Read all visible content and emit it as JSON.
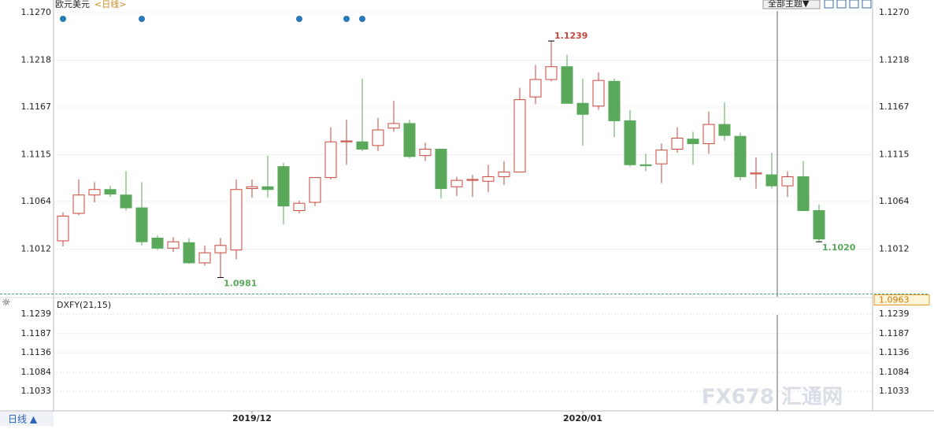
{
  "header": {
    "symbol": "欧元美元",
    "period": "<日线>",
    "theme_button": "全部主题▼",
    "footer_period": "日线 ▲",
    "watermark": "FX678 汇通网"
  },
  "chart_data": [
    {
      "type": "candlestick",
      "categories": [
        null,
        null,
        null,
        null,
        null,
        null,
        null,
        null,
        null,
        null,
        null,
        null,
        "2019/12",
        null,
        null,
        null,
        null,
        null,
        null,
        null,
        null,
        null,
        null,
        null,
        null,
        null,
        null,
        null,
        null,
        null,
        null,
        null,
        null,
        "2020/01",
        null,
        null,
        null,
        null,
        null,
        null,
        null,
        null,
        null,
        null,
        null,
        null,
        null,
        null,
        null
      ],
      "open": [
        1.1021,
        1.1051,
        1.1071,
        1.1077,
        1.1071,
        1.1057,
        1.1024,
        1.1013,
        1.1019,
        1.0997,
        1.1008,
        1.1011,
        1.1078,
        1.108,
        1.1102,
        1.1054,
        1.1063,
        1.109,
        1.1129,
        1.1129,
        1.1125,
        1.1144,
        1.1149,
        1.1114,
        1.1121,
        1.108,
        1.1087,
        1.1086,
        1.1091,
        1.1096,
        1.1178,
        1.1197,
        1.1211,
        1.1171,
        1.1168,
        1.1195,
        1.1152,
        1.1104,
        1.1105,
        1.1121,
        1.1132,
        1.1127,
        1.1148,
        1.1135,
        1.1094,
        1.1093,
        1.1081,
        1.1091,
        1.1054
      ],
      "high": [
        1.1052,
        1.1088,
        1.1085,
        1.1081,
        1.1097,
        1.1085,
        1.1027,
        1.1025,
        1.1024,
        1.1016,
        1.1024,
        1.1088,
        1.1088,
        1.1114,
        1.1106,
        1.1065,
        1.109,
        1.1145,
        1.1153,
        1.1198,
        1.1155,
        1.1174,
        1.1153,
        1.1128,
        1.1121,
        1.1091,
        1.1093,
        1.1104,
        1.1108,
        1.1188,
        1.1213,
        1.1239,
        1.1224,
        1.1198,
        1.1205,
        1.1198,
        1.1164,
        1.1116,
        1.1127,
        1.1145,
        1.114,
        1.1162,
        1.1172,
        1.1139,
        1.1112,
        1.1117,
        1.1097,
        1.1108,
        1.1061
      ],
      "low": [
        1.1015,
        1.1049,
        1.1063,
        1.1069,
        1.1054,
        1.1016,
        1.1011,
        1.1009,
        1.0996,
        1.0994,
        1.0981,
        1.1001,
        1.1068,
        1.1068,
        1.1039,
        1.1051,
        1.1059,
        1.1088,
        1.1104,
        1.1119,
        1.1119,
        1.114,
        1.1111,
        1.1108,
        1.1067,
        1.107,
        1.1069,
        1.1074,
        1.1082,
        1.1096,
        1.117,
        1.1195,
        1.1171,
        1.1125,
        1.1164,
        1.1134,
        1.1102,
        1.1097,
        1.1084,
        1.1117,
        1.1104,
        1.1116,
        1.113,
        1.1087,
        1.1078,
        1.1078,
        1.1069,
        1.1054,
        1.102
      ],
      "close": [
        1.1048,
        1.1071,
        1.1077,
        1.1072,
        1.1057,
        1.102,
        1.1013,
        1.102,
        1.0997,
        1.1008,
        1.1016,
        1.1077,
        1.108,
        1.1077,
        1.1059,
        1.1062,
        1.109,
        1.1129,
        1.113,
        1.1121,
        1.1142,
        1.1149,
        1.1113,
        1.1121,
        1.1078,
        1.1087,
        1.1088,
        1.1091,
        1.1096,
        1.1175,
        1.1197,
        1.1211,
        1.1171,
        1.1159,
        1.1196,
        1.1152,
        1.1104,
        1.1103,
        1.112,
        1.1133,
        1.1127,
        1.1148,
        1.1136,
        1.1091,
        1.1095,
        1.1081,
        1.1091,
        1.1054,
        1.1023
      ],
      "high_value_labels": [
        null,
        null,
        null,
        null,
        null,
        null,
        null,
        null,
        null,
        null,
        null,
        null,
        null,
        null,
        null,
        null,
        null,
        null,
        null,
        null,
        null,
        null,
        null,
        null,
        null,
        null,
        null,
        null,
        null,
        null,
        null,
        "1.1239",
        null,
        null,
        null,
        null,
        null,
        null,
        null,
        null,
        null,
        null,
        null,
        null,
        null,
        null,
        null,
        null,
        null
      ],
      "low_value_labels": [
        null,
        null,
        null,
        null,
        null,
        null,
        null,
        null,
        null,
        null,
        "1.0981",
        null,
        null,
        null,
        null,
        null,
        null,
        null,
        null,
        null,
        null,
        null,
        null,
        null,
        null,
        null,
        null,
        null,
        null,
        null,
        null,
        null,
        null,
        null,
        null,
        null,
        null,
        null,
        null,
        null,
        null,
        null,
        null,
        null,
        null,
        null,
        null,
        null,
        "1.1020"
      ],
      "up_color": "#c8473a",
      "down_color": "#5aa95a",
      "ylim": [
        1.096,
        1.127
      ],
      "yticks": [
        {
          "value": 1.127,
          "label": "1.1270"
        },
        1.1218,
        1.1167,
        1.1115,
        1.1064,
        1.1012
      ],
      "price_line": 1.0963,
      "grid": true
    },
    {
      "type": "indicator",
      "title": "DXFY(21,15)",
      "ylim": [
        1.0985,
        1.1258
      ],
      "yticks": [
        1.1239,
        1.1187,
        1.1136,
        1.1084,
        1.1033
      ],
      "grid": true
    }
  ]
}
